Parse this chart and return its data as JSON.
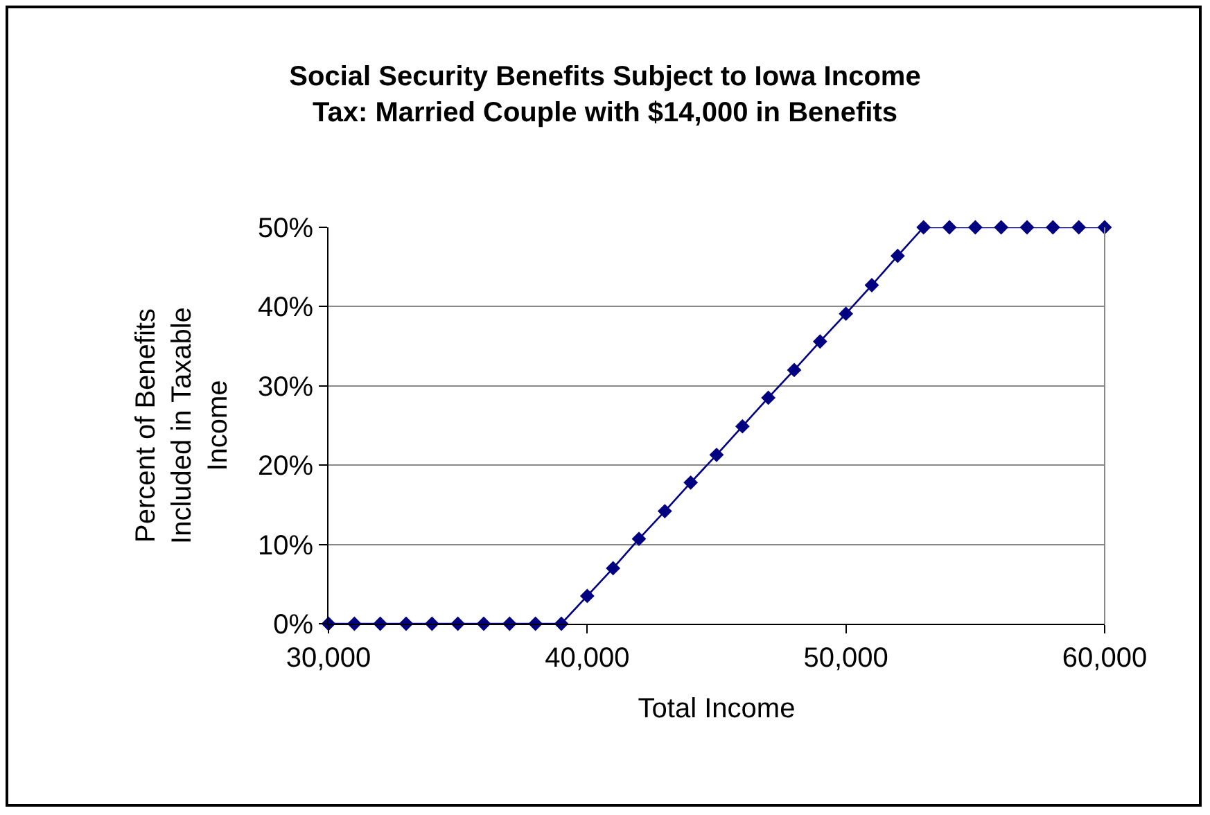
{
  "chart_data": {
    "type": "line",
    "title": "Social Security Benefits Subject to Iowa Income\nTax: Married Couple with $14,000 in Benefits",
    "xlabel": "Total Income",
    "ylabel": "Percent of Benefits\nIncluded in Taxable\nIncome",
    "x": [
      30000,
      31000,
      32000,
      33000,
      34000,
      35000,
      36000,
      37000,
      38000,
      39000,
      40000,
      41000,
      42000,
      43000,
      44000,
      45000,
      46000,
      47000,
      48000,
      49000,
      50000,
      51000,
      52000,
      53000,
      54000,
      55000,
      56000,
      57000,
      58000,
      59000,
      60000
    ],
    "series": [
      {
        "color": "#000080",
        "values": [
          0,
          0,
          0,
          0,
          0,
          0,
          0,
          0,
          0,
          0,
          3.5,
          7,
          10.7,
          14.2,
          17.8,
          21.3,
          24.9,
          28.5,
          32,
          35.6,
          39.1,
          42.7,
          46.4,
          50,
          50,
          50,
          50,
          50,
          50,
          50,
          50
        ]
      }
    ],
    "xlim": [
      30000,
      60000
    ],
    "xticks": [
      {
        "value": 30000,
        "label": "30,000"
      },
      {
        "value": 40000,
        "label": "40,000"
      },
      {
        "value": 50000,
        "label": "50,000"
      },
      {
        "value": 60000,
        "label": "60,000"
      }
    ],
    "ylim": [
      0,
      50
    ],
    "yticks": [
      {
        "value": 0,
        "label": "0%"
      },
      {
        "value": 10,
        "label": "10%"
      },
      {
        "value": 20,
        "label": "20%"
      },
      {
        "value": 30,
        "label": "30%"
      },
      {
        "value": 40,
        "label": "40%"
      },
      {
        "value": 50,
        "label": "50%"
      }
    ],
    "grid": "y",
    "marker": "diamond",
    "line_style": "solid"
  }
}
